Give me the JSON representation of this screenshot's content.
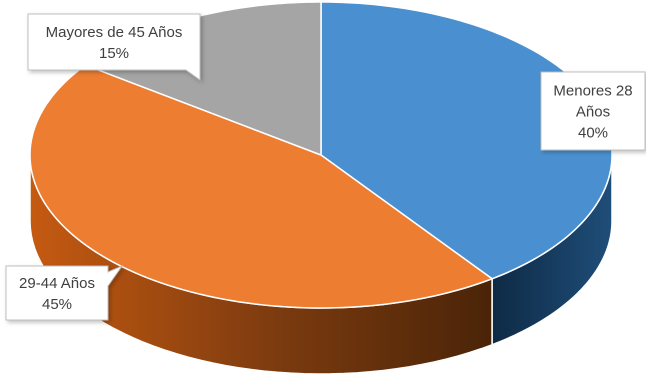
{
  "chart_data": {
    "type": "pie",
    "style": "3d-exploded-perspective",
    "title": "",
    "slices": [
      {
        "label": "Menores  28 Años",
        "display_lines": [
          "Menores  28",
          "Años"
        ],
        "value": 40,
        "value_label": "40%",
        "color": "#4A90D0"
      },
      {
        "label": "29-44 Años",
        "display_lines": [
          "29-44 Años"
        ],
        "value": 45,
        "value_label": "45%",
        "color": "#ED7D31"
      },
      {
        "label": "Mayores de 45 Años",
        "display_lines": [
          "Mayores de 45 Años"
        ],
        "value": 15,
        "value_label": "15%",
        "color": "#A5A5A5"
      }
    ],
    "legend": "none",
    "data_labels": "callouts"
  }
}
